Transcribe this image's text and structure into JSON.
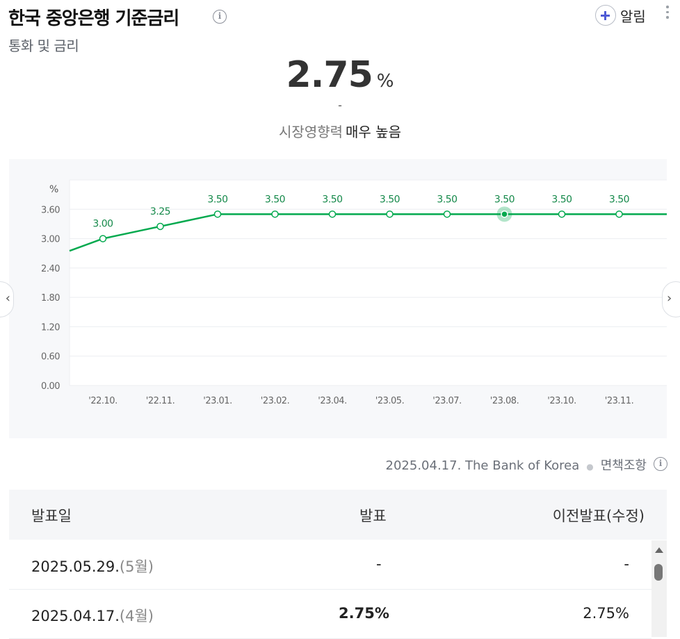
{
  "header": {
    "title": "한국 중앙은행 기준금리",
    "subtitle": "통화 및 금리",
    "alarm_label": "알림"
  },
  "summary": {
    "value": "2.75",
    "unit": "%",
    "change": "-",
    "impact_label": "시장영향력",
    "impact_value": "매우 높음"
  },
  "chart_data": {
    "type": "line",
    "ylabel": "%",
    "ylim": [
      0,
      4.2
    ],
    "y_ticks": [
      "0.00",
      "0.60",
      "1.20",
      "1.80",
      "2.40",
      "3.00",
      "3.60"
    ],
    "categories": [
      "'22.10.",
      "'22.11.",
      "'23.01.",
      "'23.02.",
      "'23.04.",
      "'23.05.",
      "'23.07.",
      "'23.08.",
      "'23.10.",
      "'23.11."
    ],
    "values": [
      3.0,
      3.25,
      3.5,
      3.5,
      3.5,
      3.5,
      3.5,
      3.5,
      3.5,
      3.5
    ],
    "labels": [
      "3.00",
      "3.25",
      "3.50",
      "3.50",
      "3.50",
      "3.50",
      "3.50",
      "3.50",
      "3.50",
      "3.50"
    ],
    "left_partial_value": 2.75,
    "highlight_index": 7,
    "line_color": "#03a94e",
    "grid": true
  },
  "source": {
    "date_org": "2025.04.17. The Bank of Korea",
    "disclaimer": "면책조항"
  },
  "table": {
    "headers": [
      "발표일",
      "발표",
      "이전발표(수정)"
    ],
    "rows": [
      {
        "date": "2025.05.29.",
        "month": "(5월)",
        "actual": "-",
        "previous": "-"
      },
      {
        "date": "2025.04.17.",
        "month": "(4월)",
        "actual": "2.75%",
        "previous": "2.75%"
      }
    ]
  }
}
